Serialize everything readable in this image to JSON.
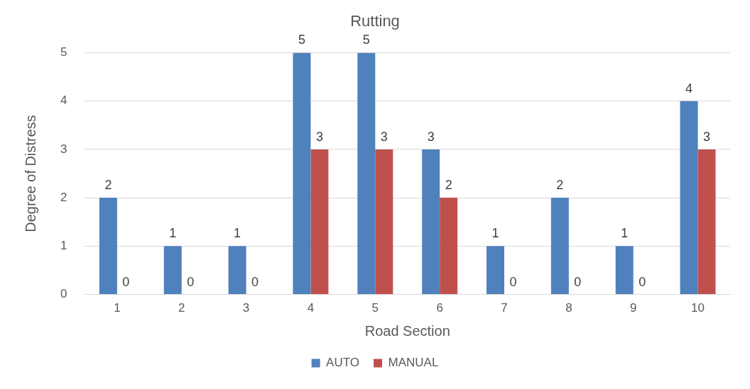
{
  "chart_data": {
    "type": "bar",
    "title": "Rutting",
    "xlabel": "Road Section",
    "ylabel": "Degree of Distress",
    "categories": [
      "1",
      "2",
      "3",
      "4",
      "5",
      "6",
      "7",
      "8",
      "9",
      "10"
    ],
    "series": [
      {
        "name": "AUTO",
        "color": "#4f81bd",
        "values": [
          2,
          1,
          1,
          5,
          5,
          3,
          1,
          2,
          1,
          4
        ]
      },
      {
        "name": "MANUAL",
        "color": "#c0504d",
        "values": [
          0,
          0,
          0,
          3,
          3,
          2,
          0,
          0,
          0,
          3
        ]
      }
    ],
    "ylim": [
      0,
      5
    ],
    "yticks": [
      0,
      1,
      2,
      3,
      4,
      5
    ],
    "grid": "y",
    "legend": "bottom",
    "data_labels": true
  }
}
